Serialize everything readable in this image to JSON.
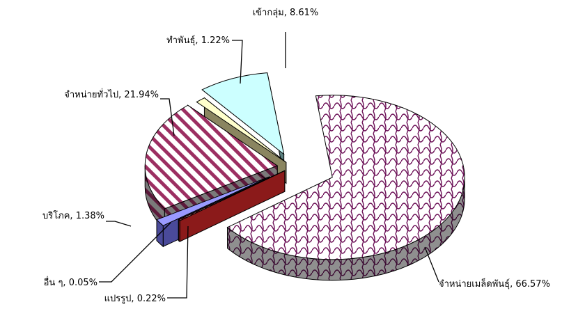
{
  "chart_data": {
    "type": "pie",
    "variant": "3d-exploded",
    "title": "",
    "slices": [
      {
        "label": "จำหน่ายเมล็ดพันธุ์",
        "text": "จำหน่ายเมล็ดพันธุ์, 66.57%",
        "value": 66.57,
        "color": "#6b0f56",
        "base": "#ffffff"
      },
      {
        "label": "แปรรูป",
        "text": "แปรรูป, 0.22%",
        "value": 0.22,
        "color": "#8b1a1a",
        "base": "#d9a0a0"
      },
      {
        "label": "อื่น ๆ",
        "text": "อื่น ๆ, 0.05%",
        "value": 0.05,
        "color": "#333333",
        "base": "#666666"
      },
      {
        "label": "บริโภค",
        "text": "บริโภค, 1.38%",
        "value": 1.38,
        "color": "#4a4a9a",
        "base": "#9a9aff"
      },
      {
        "label": "จำหน่ายทั่วไป",
        "text": "จำหน่ายทั่วไป, 21.94%",
        "value": 21.94,
        "color": "#9c2f62",
        "base": "#ffffff"
      },
      {
        "label": "ทำพันธุ์",
        "text": "ทำพันธุ์, 1.22%",
        "value": 1.22,
        "color": "#8a8560",
        "base": "#ffffcc"
      },
      {
        "label": "เข้ากลุ่ม",
        "text": "เข้ากลุ่ม, 8.61%",
        "value": 8.61,
        "color": "#5a7f7f",
        "base": "#ccffff"
      }
    ],
    "legend": "none"
  }
}
